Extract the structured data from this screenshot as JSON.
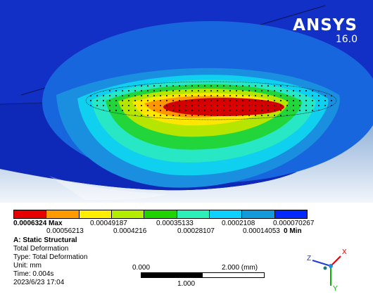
{
  "app": {
    "brand_name": "ANSYS",
    "brand_version": "16.0"
  },
  "legend": {
    "colors": [
      "#e60000",
      "#ff9a00",
      "#ffee00",
      "#b4ec00",
      "#1ed300",
      "#2cf0b8",
      "#0ed1ff",
      "#129bd8",
      "#0028ff"
    ],
    "top_labels": [
      "0.0006324 Max",
      "0.00049187",
      "0.00035133",
      "0.0002108",
      "0.000070267"
    ],
    "bottom_labels": [
      "0.00056213",
      "0.0004216",
      "0.00028107",
      "0.00014053",
      "0 Min"
    ]
  },
  "info": {
    "title": "A: Static Structural",
    "result": "Total Deformation",
    "type": "Type: Total Deformation",
    "unit": "Unit: mm",
    "time": "Time: 0.004s",
    "date": "2023/6/23 17:04"
  },
  "scale": {
    "left": "0.000",
    "right": "2.000 (mm)",
    "middle": "1.000"
  },
  "triad": {
    "x": "X",
    "y": "Y",
    "z": "Z",
    "x_color": "#e00000",
    "y_color": "#0bb000",
    "z_color": "#1f3ad8"
  }
}
